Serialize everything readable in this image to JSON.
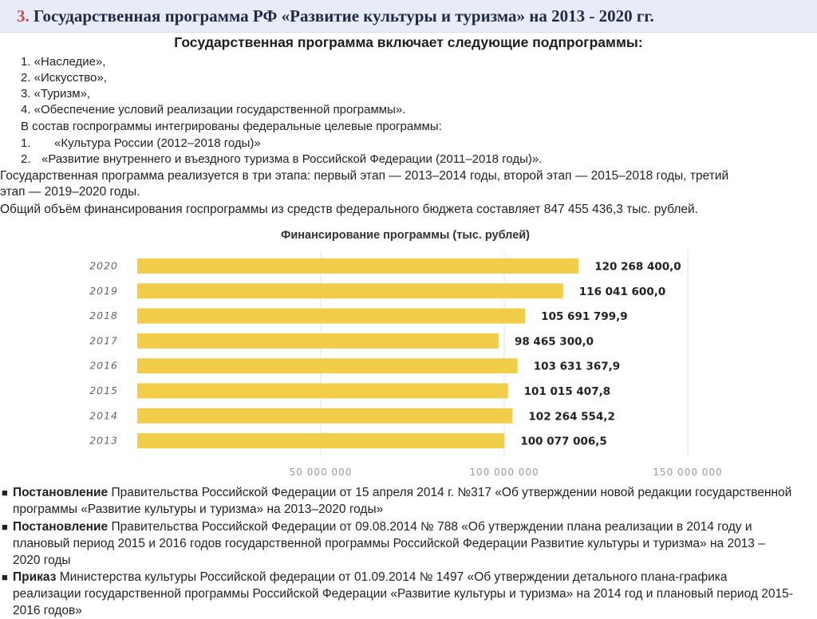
{
  "header": {
    "number": "3.",
    "title": "Государственная программа РФ «Развитие культуры и туризма» на 2013 - 2020 гг."
  },
  "intro": {
    "heading": "Государственная программа включает следующие подпрограммы:",
    "subprograms": [
      "1. «Наследие»,",
      "2. «Искусство»,",
      "3. «Туризм»,",
      "4. «Обеспечение условий реализации государственной программы»."
    ],
    "fcp_intro": "В состав госпрограммы интегрированы федеральные целевые программы:",
    "fcp_items": [
      {
        "num": "1.",
        "text": "«Культура России (2012–2018 годы)»"
      },
      {
        "num": "2.",
        "text": "«Развитие внутреннего и въездного туризма в Российской Федерации (2011–2018 годы)»."
      }
    ],
    "stages_line1": "Государственная программа реализуется в три этапа: первый этап — 2013–2014 годы, второй этап — 2015–2018 годы, третий",
    "stages_line2": "этап — 2019–2020 годы.",
    "budget": "Общий объём финансирования госпрограммы из средств федерального бюджета составляет 847 455 436,3 тыс. рублей."
  },
  "chart_data": {
    "type": "bar",
    "orientation": "horizontal",
    "title": "Финансирование программы (тыс. рублей)",
    "categories": [
      "2020",
      "2019",
      "2018",
      "2017",
      "2016",
      "2015",
      "2014",
      "2013"
    ],
    "values": [
      120268400.0,
      116041600.0,
      105691799.9,
      98465300.0,
      103631367.9,
      101015407.8,
      102264554.2,
      100077006.5
    ],
    "data_labels": [
      "120 268 400,0",
      "116 041 600,0",
      "105 691 799,9",
      "98 465 300,0",
      "103 631 367,9",
      "101 015 407,8",
      "102 264 554,2",
      "100 077 006,5"
    ],
    "xlim": [
      0,
      150000000
    ],
    "ticks": [
      50000000,
      100000000,
      150000000
    ],
    "tick_labels": [
      "50 000 000",
      "100 000 000",
      "150 000 000"
    ],
    "grid": true,
    "bar_color": "#f2cd4a"
  },
  "documents": [
    {
      "kind": "Постановление",
      "text": " Правительства Российской Федерации от 15 апреля 2014 г. №317 «Об утверждении новой редакции государственной программы «Развитие культуры и туризма» на 2013–2020 годы»"
    },
    {
      "kind": "Постановление",
      "text": " Правительства Российской Федерации от 09.08.2014 № 788 «Об утверждении плана реализации в 2014 году и плановый период 2015 и 2016 годов государственной программы Российской Федерации Развитие культуры и туризма» на 2013 – 2020 годы"
    },
    {
      "kind": "Приказ",
      "text": " Министерства культуры Российской федерации от 01.09.2014 № 1497 «Об утверждении детального плана-графика реализации государственной программы Российской Федерации «Развитие культуры и туризма» на 2014 год и плановый период 2015-2016 годов»"
    }
  ]
}
